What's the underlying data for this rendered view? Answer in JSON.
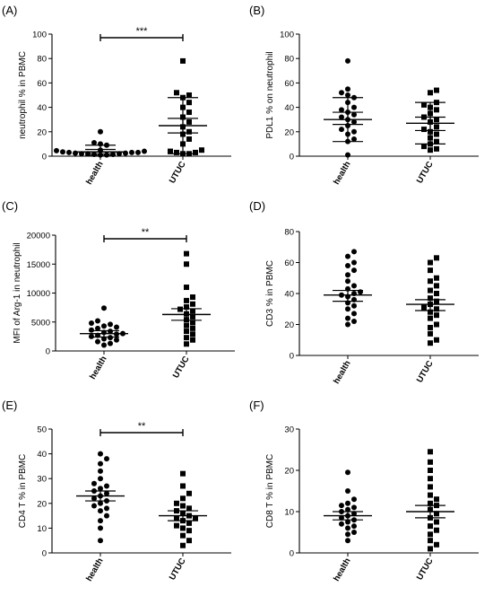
{
  "chart_data": [
    {
      "panel_label": "(A)",
      "type": "scatter",
      "ylabel": "neutrophil % in PBMC",
      "yticks": [
        "0",
        "20",
        "40",
        "60",
        "80",
        "100"
      ],
      "ylim": [
        0,
        100
      ],
      "categories": [
        "health",
        "UTUC"
      ],
      "significance": "***",
      "groups": [
        {
          "name": "health",
          "marker": "circle",
          "mean": 3.5,
          "sem_range": [
            1.8,
            5.5
          ],
          "sd_range": [
            0.5,
            9
          ],
          "values": [
            1,
            1.5,
            2,
            2,
            2.5,
            3,
            3,
            3.5,
            4,
            4.5,
            5,
            9,
            10,
            11,
            20,
            1,
            2,
            3,
            2.5,
            1.5
          ]
        },
        {
          "name": "UTUC",
          "marker": "square",
          "mean": 25,
          "sem_range": [
            19,
            31
          ],
          "sd_range": [
            2,
            48
          ],
          "values": [
            2,
            2,
            3,
            4,
            5,
            14,
            18,
            20,
            24,
            28,
            32,
            36,
            40,
            44,
            48,
            50,
            52,
            78,
            3,
            10
          ]
        }
      ]
    },
    {
      "panel_label": "(B)",
      "type": "scatter",
      "ylabel": "PDL1 % on neutrophil",
      "yticks": [
        "0",
        "20",
        "40",
        "60",
        "80",
        "100"
      ],
      "ylim": [
        0,
        100
      ],
      "categories": [
        "health",
        "UTUC"
      ],
      "significance": "",
      "groups": [
        {
          "name": "health",
          "marker": "circle",
          "mean": 30,
          "sem_range": [
            26,
            36
          ],
          "sd_range": [
            12,
            48
          ],
          "values": [
            1,
            12,
            14,
            18,
            20,
            22,
            25,
            28,
            30,
            32,
            34,
            36,
            38,
            40,
            44,
            48,
            50,
            52,
            55,
            78
          ]
        },
        {
          "name": "UTUC",
          "marker": "square",
          "mean": 27,
          "sem_range": [
            21,
            32
          ],
          "sd_range": [
            10,
            44
          ],
          "values": [
            5,
            6,
            8,
            10,
            12,
            15,
            18,
            20,
            22,
            24,
            28,
            30,
            32,
            35,
            38,
            40,
            42,
            44,
            52,
            54
          ]
        }
      ]
    },
    {
      "panel_label": "(C)",
      "type": "scatter",
      "ylabel": "MFI of Arg-1 in neutrophil",
      "yticks": [
        "0",
        "5000",
        "10000",
        "15000",
        "20000"
      ],
      "ylim": [
        0,
        20000
      ],
      "categories": [
        "health",
        "UTUC"
      ],
      "significance": "**",
      "groups": [
        {
          "name": "health",
          "marker": "circle",
          "mean": 3000,
          "sem_range": [
            2400,
            3500
          ],
          "sd_range": [
            2400,
            3500
          ],
          "values": [
            1000,
            1300,
            1600,
            1900,
            2100,
            2300,
            2500,
            2700,
            2900,
            3000,
            3200,
            3400,
            3600,
            3900,
            4100,
            4300,
            4600,
            4800,
            5200,
            7400
          ]
        },
        {
          "name": "UTUC",
          "marker": "square",
          "mean": 6300,
          "sem_range": [
            5300,
            7300
          ],
          "sd_range": [
            5300,
            7300
          ],
          "values": [
            1200,
            1900,
            2300,
            2900,
            3400,
            3900,
            4400,
            4900,
            5400,
            5900,
            6400,
            6900,
            7200,
            7600,
            8100,
            8700,
            9300,
            11000,
            15000,
            16800
          ]
        }
      ]
    },
    {
      "panel_label": "(D)",
      "type": "scatter",
      "ylabel": "CD3 % in PBMC",
      "yticks": [
        "0",
        "20",
        "40",
        "60",
        "80"
      ],
      "ylim": [
        0,
        80
      ],
      "categories": [
        "health",
        "UTUC"
      ],
      "significance": "",
      "groups": [
        {
          "name": "health",
          "marker": "circle",
          "mean": 39,
          "sem_range": [
            35,
            42
          ],
          "sd_range": [
            35,
            42
          ],
          "values": [
            20,
            22,
            24,
            27,
            30,
            32,
            34,
            36,
            38,
            39,
            40,
            41,
            43,
            45,
            48,
            52,
            55,
            58,
            60,
            64,
            67
          ]
        },
        {
          "name": "UTUC",
          "marker": "square",
          "mean": 33,
          "sem_range": [
            29,
            36
          ],
          "sd_range": [
            29,
            36
          ],
          "values": [
            8,
            10,
            14,
            18,
            20,
            24,
            26,
            28,
            30,
            31,
            33,
            35,
            37,
            40,
            42,
            45,
            48,
            50,
            55,
            60,
            63
          ]
        }
      ]
    },
    {
      "panel_label": "(E)",
      "type": "scatter",
      "ylabel": "CD4 T % in PBMC",
      "yticks": [
        "0",
        "10",
        "20",
        "30",
        "40",
        "50"
      ],
      "ylim": [
        0,
        50
      ],
      "categories": [
        "health",
        "UTUC"
      ],
      "significance": "**",
      "groups": [
        {
          "name": "health",
          "marker": "circle",
          "mean": 23,
          "sem_range": [
            21,
            25
          ],
          "sd_range": [
            21,
            25
          ],
          "values": [
            5,
            10,
            13,
            15,
            17,
            18,
            19,
            20,
            21,
            22,
            23,
            24,
            25,
            26,
            27,
            28,
            30,
            33,
            36,
            38,
            40
          ]
        },
        {
          "name": "UTUC",
          "marker": "square",
          "mean": 15,
          "sem_range": [
            13,
            17
          ],
          "sd_range": [
            13,
            17
          ],
          "values": [
            3,
            5,
            7,
            9,
            10,
            11,
            12,
            13,
            14,
            14,
            15,
            16,
            17,
            18,
            19,
            20,
            22,
            24,
            27,
            32
          ]
        }
      ]
    },
    {
      "panel_label": "(F)",
      "type": "scatter",
      "ylabel": "CD8 T % in PBMC",
      "yticks": [
        "0",
        "10",
        "20",
        "30"
      ],
      "ylim": [
        0,
        30
      ],
      "categories": [
        "health",
        "UTUC"
      ],
      "significance": "",
      "groups": [
        {
          "name": "health",
          "marker": "circle",
          "mean": 9,
          "sem_range": [
            8,
            10
          ],
          "sd_range": [
            8,
            10
          ],
          "values": [
            3,
            4.5,
            5,
            6,
            6.5,
            7,
            7.5,
            8,
            8.5,
            9,
            9.5,
            10,
            10.5,
            11,
            11.5,
            12,
            13,
            15,
            19.5
          ]
        },
        {
          "name": "UTUC",
          "marker": "square",
          "mean": 10,
          "sem_range": [
            8.5,
            11.5
          ],
          "sd_range": [
            8.5,
            11.5
          ],
          "values": [
            1,
            2,
            3,
            4.5,
            5.5,
            6.5,
            7.5,
            8.5,
            9.5,
            10.5,
            11.5,
            12,
            13,
            14,
            16,
            18,
            20,
            22,
            24.5
          ]
        }
      ]
    }
  ]
}
